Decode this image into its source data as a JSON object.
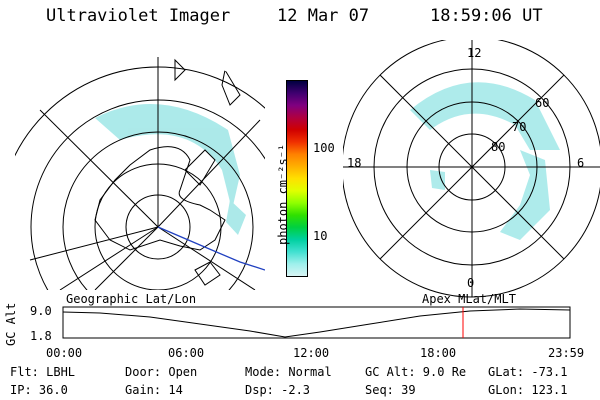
{
  "header": {
    "title": "Ultraviolet Imager",
    "date": "12 Mar 07",
    "time": "18:59:06 UT"
  },
  "left_panel": {
    "caption": "Geographic Lat/Lon"
  },
  "right_panel": {
    "caption": "Apex MLat/MLT",
    "mlt_labels": {
      "top": "12",
      "left": "18",
      "right": "6",
      "bottom": "0"
    },
    "lat_labels": [
      "60",
      "70",
      "80"
    ]
  },
  "colorbar": {
    "unit": "photon cm⁻²s⁻¹",
    "ticks": [
      "100",
      "10"
    ],
    "colors": [
      "#000040",
      "#400070",
      "#800080",
      "#b00040",
      "#d00000",
      "#f03000",
      "#ff8000",
      "#ffb000",
      "#ffe000",
      "#e0ff00",
      "#90ff00",
      "#30e000",
      "#00d040",
      "#00d0a0",
      "#40e0d0",
      "#9ef0ec",
      "#d8f4f4"
    ]
  },
  "altitude_strip": {
    "axis_label": "GC Alt",
    "y_ticks": [
      "9.0",
      "1.8"
    ],
    "x_ticks": [
      "00:00",
      "06:00",
      "12:00",
      "18:00",
      "23:59"
    ],
    "marker_color": "#ff0000",
    "marker_time": "18:59"
  },
  "status": {
    "filter": "Flt: LBHL",
    "ip": "IP: 36.0",
    "door": "Door: Open",
    "gain": "Gain: 14",
    "mode": "Mode: Normal",
    "dsp": "Dsp:    -2.3",
    "gc_alt": "GC Alt: 9.0 Re",
    "seq": "Seq: 39",
    "glat": "GLat: -73.1",
    "glon": "GLon: 123.1"
  }
}
